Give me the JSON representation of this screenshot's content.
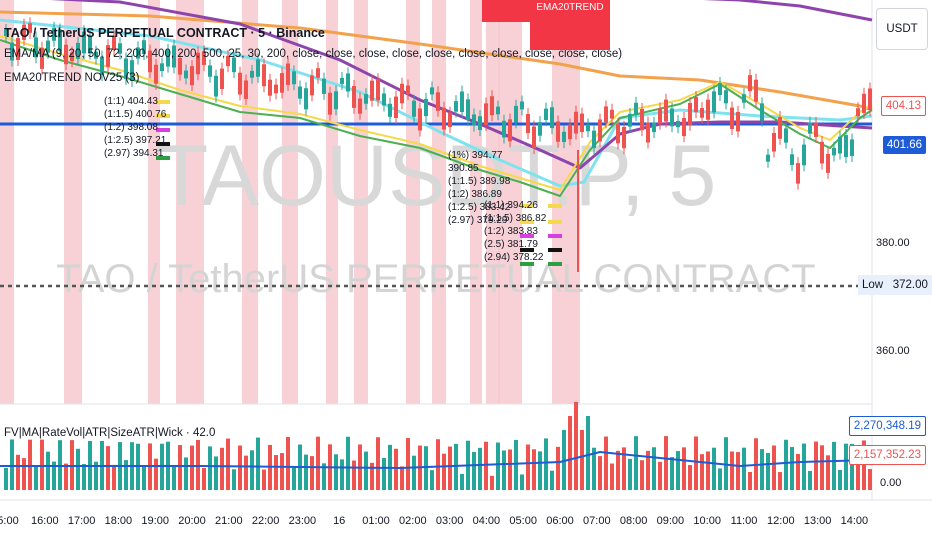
{
  "header": {
    "ticker_title": "TAO / TetherUS PERPETUAL CONTRACT · 5 · Binance",
    "indicator_1": "EMA/MA (9, 20, 50, 72, 200, 400, 200, 500, 25, 30, 200, close, close, close, close, close, close, close, close, close, close)",
    "indicator_2": "EMA20TREND NOV25 (3)"
  },
  "watermark": {
    "symbol": "TAOUSDT.P, 5",
    "name": "TAO / TetherUS PERPETUAL CONTRACT"
  },
  "price_axis": {
    "currency": "USDT",
    "ticks": [
      "380.00",
      "372.00",
      "360.00"
    ],
    "low_label": "Low",
    "tag_red": "404.13",
    "tag_blue": "401.66"
  },
  "signals": {
    "flag_label": "EMA20TREND"
  },
  "target_labels_left": [
    "(1:1) 404.43",
    "(1:1.5) 400.76",
    "(1:2) 398.08",
    "(1:2.5) 397.21",
    "(2.97) 394.31"
  ],
  "target_labels_right": [
    "(1%) 394.77",
    "390.85",
    "(1:1.5) 389.98",
    "(1:2) 386.89",
    "(1:2.5) 383.42",
    "(2.97) 379.29"
  ],
  "target_labels_right2": [
    "(1:1) 394.26",
    "(1:1.5) 386.82",
    "(1:2) 383.83",
    "(2.5) 381.79",
    "(2.94) 378.22"
  ],
  "oscillator": {
    "title": "FV|MA|RateVol|ATR|SizeATR|Wick · 42.0",
    "tag_blue": "2,270,348.19",
    "tag_red": "2,157,352.23",
    "tag_zero": "0.00"
  },
  "time_axis": [
    "5:00",
    "16:00",
    "17:00",
    "18:00",
    "19:00",
    "20:00",
    "21:00",
    "22:00",
    "23:00",
    "16",
    "01:00",
    "02:00",
    "03:00",
    "04:00",
    "05:00",
    "06:00",
    "07:00",
    "08:00",
    "09:00",
    "10:00",
    "11:00",
    "12:00",
    "13:00",
    "14:00"
  ],
  "colors": {
    "up": "#26a69a",
    "down": "#ef5350",
    "shade": "#f7c9cf",
    "ema_green": "#4caf50",
    "ema_yellow": "#f5d94a",
    "ema_cyan": "#7ee3ee",
    "ema_orange": "#f3a24c",
    "ema_purple": "#8e44ad",
    "hline_blue": "#1e5bd6"
  }
}
